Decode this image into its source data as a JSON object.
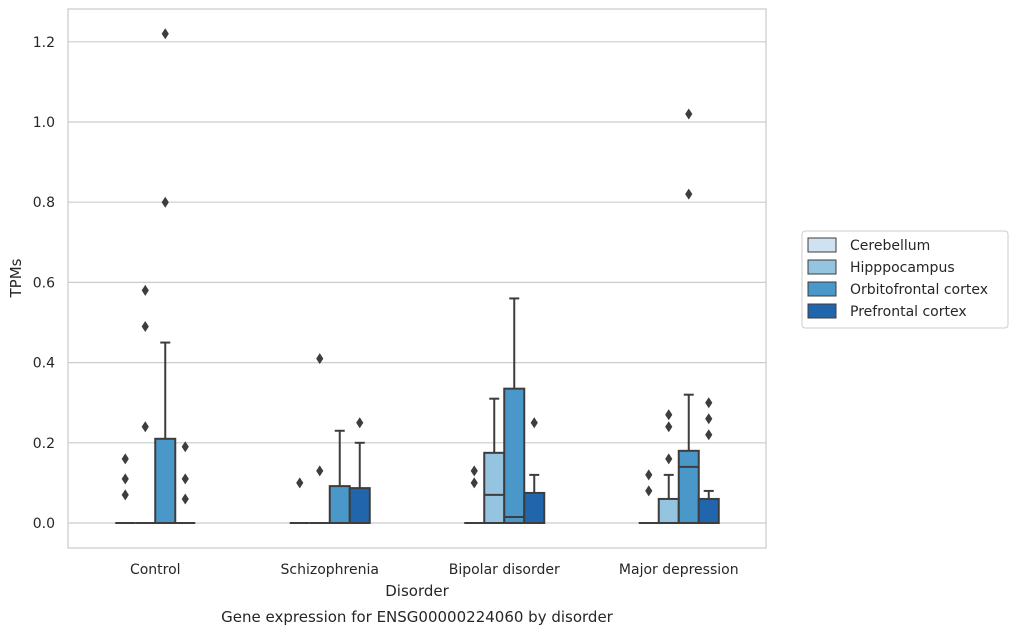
{
  "chart_data": {
    "type": "box",
    "caption": "Gene expression for ENSG00000224060 by disorder",
    "xlabel": "Disorder",
    "ylabel": "TPMs",
    "ylim": [
      -0.06,
      1.28
    ],
    "yticks": [
      0.0,
      0.2,
      0.4,
      0.6,
      0.8,
      1.0,
      1.2
    ],
    "ytick_labels": [
      "0.0",
      "0.2",
      "0.4",
      "0.6",
      "0.8",
      "1.0",
      "1.2"
    ],
    "grid": "horizontal",
    "legend_position": "right",
    "categories": [
      "Control",
      "Schizophrenia",
      "Bipolar disorder",
      "Major depression"
    ],
    "series": [
      {
        "name": "Cerebellum",
        "color": "#d0e1f2",
        "boxes": [
          {
            "q1": 0,
            "median": 0,
            "q3": 0,
            "whislo": 0,
            "whishi": 0,
            "fliers": [
              0.07,
              0.11,
              0.16
            ]
          },
          {
            "q1": 0,
            "median": 0,
            "q3": 0,
            "whislo": 0,
            "whishi": 0,
            "fliers": [
              0.1
            ]
          },
          {
            "q1": 0,
            "median": 0,
            "q3": 0,
            "whislo": 0,
            "whishi": 0,
            "fliers": [
              0.1,
              0.13
            ]
          },
          {
            "q1": 0,
            "median": 0,
            "q3": 0,
            "whislo": 0,
            "whishi": 0,
            "fliers": [
              0.08,
              0.12
            ]
          }
        ]
      },
      {
        "name": "Hipppocampus",
        "color": "#94c4df",
        "boxes": [
          {
            "q1": 0,
            "median": 0,
            "q3": 0,
            "whislo": 0,
            "whishi": 0,
            "fliers": [
              0.24,
              0.49,
              0.58
            ]
          },
          {
            "q1": 0,
            "median": 0,
            "q3": 0,
            "whislo": 0,
            "whishi": 0,
            "fliers": [
              0.13,
              0.41
            ]
          },
          {
            "q1": 0,
            "median": 0.07,
            "q3": 0.175,
            "whislo": 0,
            "whishi": 0.31,
            "fliers": []
          },
          {
            "q1": 0,
            "median": 0,
            "q3": 0.06,
            "whislo": 0,
            "whishi": 0.12,
            "fliers": [
              0.16,
              0.24,
              0.27
            ]
          }
        ]
      },
      {
        "name": "Orbitofrontal cortex",
        "color": "#4a98c9",
        "boxes": [
          {
            "q1": 0,
            "median": 0,
            "q3": 0.21,
            "whislo": 0,
            "whishi": 0.45,
            "fliers": [
              0.8,
              1.22
            ]
          },
          {
            "q1": 0,
            "median": 0,
            "q3": 0.092,
            "whislo": 0,
            "whishi": 0.23,
            "fliers": []
          },
          {
            "q1": 0,
            "median": 0.015,
            "q3": 0.335,
            "whislo": 0,
            "whishi": 0.56,
            "fliers": []
          },
          {
            "q1": 0,
            "median": 0.14,
            "q3": 0.18,
            "whislo": 0,
            "whishi": 0.32,
            "fliers": [
              0.82,
              1.02
            ]
          }
        ]
      },
      {
        "name": "Prefrontal cortex",
        "color": "#2166ac",
        "boxes": [
          {
            "q1": 0,
            "median": 0,
            "q3": 0,
            "whislo": 0,
            "whishi": 0,
            "fliers": [
              0.06,
              0.11,
              0.19
            ]
          },
          {
            "q1": 0,
            "median": 0,
            "q3": 0.087,
            "whislo": 0,
            "whishi": 0.2,
            "fliers": [
              0.25
            ]
          },
          {
            "q1": 0,
            "median": 0,
            "q3": 0.075,
            "whislo": 0,
            "whishi": 0.12,
            "fliers": [
              0.25
            ]
          },
          {
            "q1": 0,
            "median": 0,
            "q3": 0.06,
            "whislo": 0,
            "whishi": 0.08,
            "fliers": [
              0.22,
              0.26,
              0.3
            ]
          }
        ]
      }
    ]
  }
}
